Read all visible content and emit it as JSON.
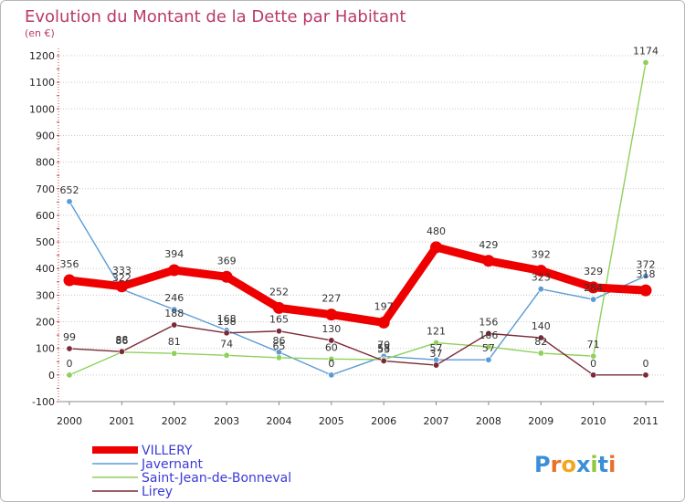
{
  "chart_data": {
    "type": "line",
    "title": "Evolution du Montant de la Dette par Habitant",
    "subtitle": "(en €)",
    "xlabel": "",
    "ylabel": "",
    "ylim": [
      -100,
      1200
    ],
    "yticks": [
      "-100",
      "0",
      "100",
      "200",
      "300",
      "400",
      "500",
      "600",
      "700",
      "800",
      "900",
      "1000",
      "1100",
      "1200"
    ],
    "ytick_values": [
      -100,
      0,
      100,
      200,
      300,
      400,
      500,
      600,
      700,
      800,
      900,
      1000,
      1100,
      1200
    ],
    "categories": [
      "2000",
      "2001",
      "2002",
      "2003",
      "2004",
      "2005",
      "2006",
      "2007",
      "2008",
      "2009",
      "2010",
      "2011"
    ],
    "grid": "horizontal",
    "legend": "bottom-left",
    "series": [
      {
        "name": "Javernant",
        "color": "#5b9bd5",
        "values": [
          652,
          322,
          246,
          168,
          86,
          0,
          70,
          57,
          57,
          323,
          284,
          372
        ],
        "labels": [
          "652",
          "322",
          "246",
          "168",
          "86",
          "0",
          "70",
          "57",
          "57",
          "323",
          "284",
          "372"
        ]
      },
      {
        "name": "Saint-Jean-de-Bonneval",
        "color": "#8fd05a",
        "values": [
          0,
          86,
          81,
          74,
          65,
          60,
          58,
          121,
          106,
          82,
          71,
          1174
        ],
        "labels": [
          "0",
          "86",
          "81",
          "74",
          "65",
          "60",
          "58",
          "121",
          "106",
          "82",
          "71",
          "1174"
        ]
      },
      {
        "name": "Lirey",
        "color": "#7a2a36",
        "values": [
          99,
          88,
          188,
          158,
          165,
          130,
          53,
          37,
          156,
          140,
          0,
          0
        ],
        "labels": [
          "99",
          "88",
          "188",
          "158",
          "165",
          "130",
          "53",
          "37",
          "156",
          "140",
          "0",
          "0"
        ]
      },
      {
        "name": "VILLERY",
        "color": "#ee0000",
        "values": [
          356,
          333,
          394,
          369,
          252,
          227,
          197,
          480,
          429,
          392,
          329,
          318
        ],
        "labels": [
          "356",
          "333",
          "394",
          "369",
          "252",
          "227",
          "197",
          "480",
          "429",
          "392",
          "329",
          "318"
        ]
      }
    ],
    "legend_entries": [
      {
        "name": "VILLERY",
        "color": "#ee0000",
        "text_color": "#3b3bd8"
      },
      {
        "name": "Javernant",
        "color": "#5b9bd5",
        "text_color": "#3b3bd8"
      },
      {
        "name": "Saint-Jean-de-Bonneval",
        "color": "#8fd05a",
        "text_color": "#3b3bd8"
      },
      {
        "name": "Lirey",
        "color": "#7a2a36",
        "text_color": "#3b3bd8"
      }
    ]
  },
  "logo": {
    "text": "Proxiti",
    "letters": [
      "P",
      "r",
      "o",
      "x",
      "i",
      "t",
      "i"
    ],
    "colors": [
      "#3a8fd8",
      "#e8702a",
      "#f0a820",
      "#3a8fd8",
      "#8fc83a",
      "#3a8fd8",
      "#e8702a"
    ]
  }
}
